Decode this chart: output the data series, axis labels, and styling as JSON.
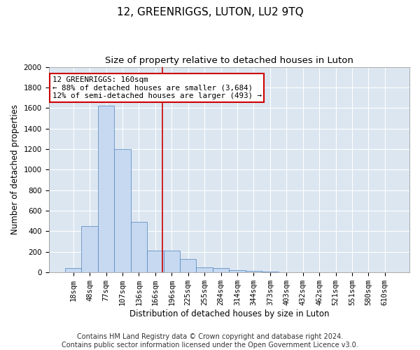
{
  "title": "12, GREENRIGGS, LUTON, LU2 9TQ",
  "subtitle": "Size of property relative to detached houses in Luton",
  "xlabel": "Distribution of detached houses by size in Luton",
  "ylabel": "Number of detached properties",
  "footer_line1": "Contains HM Land Registry data © Crown copyright and database right 2024.",
  "footer_line2": "Contains public sector information licensed under the Open Government Licence v3.0.",
  "bin_labels": [
    "18sqm",
    "48sqm",
    "77sqm",
    "107sqm",
    "136sqm",
    "166sqm",
    "196sqm",
    "225sqm",
    "255sqm",
    "284sqm",
    "314sqm",
    "344sqm",
    "373sqm",
    "403sqm",
    "432sqm",
    "462sqm",
    "521sqm",
    "551sqm",
    "580sqm",
    "610sqm"
  ],
  "bar_values": [
    40,
    450,
    1620,
    1200,
    490,
    210,
    210,
    130,
    50,
    40,
    25,
    15,
    5,
    0,
    0,
    0,
    0,
    0,
    0,
    0
  ],
  "bar_color": "#c6d9f0",
  "bar_edge_color": "#4f81bd",
  "property_line_x": 5.45,
  "annotation_text": "12 GREENRIGGS: 160sqm\n← 88% of detached houses are smaller (3,684)\n12% of semi-detached houses are larger (493) →",
  "annotation_box_color": "#ffffff",
  "annotation_box_edge": "#cc0000",
  "vline_color": "#cc0000",
  "ylim": [
    0,
    2000
  ],
  "yticks": [
    0,
    200,
    400,
    600,
    800,
    1000,
    1200,
    1400,
    1600,
    1800,
    2000
  ],
  "background_color": "#dce6f1",
  "grid_color": "#ffffff",
  "fig_background": "#ffffff",
  "title_fontsize": 11,
  "subtitle_fontsize": 9.5,
  "axis_label_fontsize": 8.5,
  "tick_fontsize": 7.5,
  "footer_fontsize": 7
}
